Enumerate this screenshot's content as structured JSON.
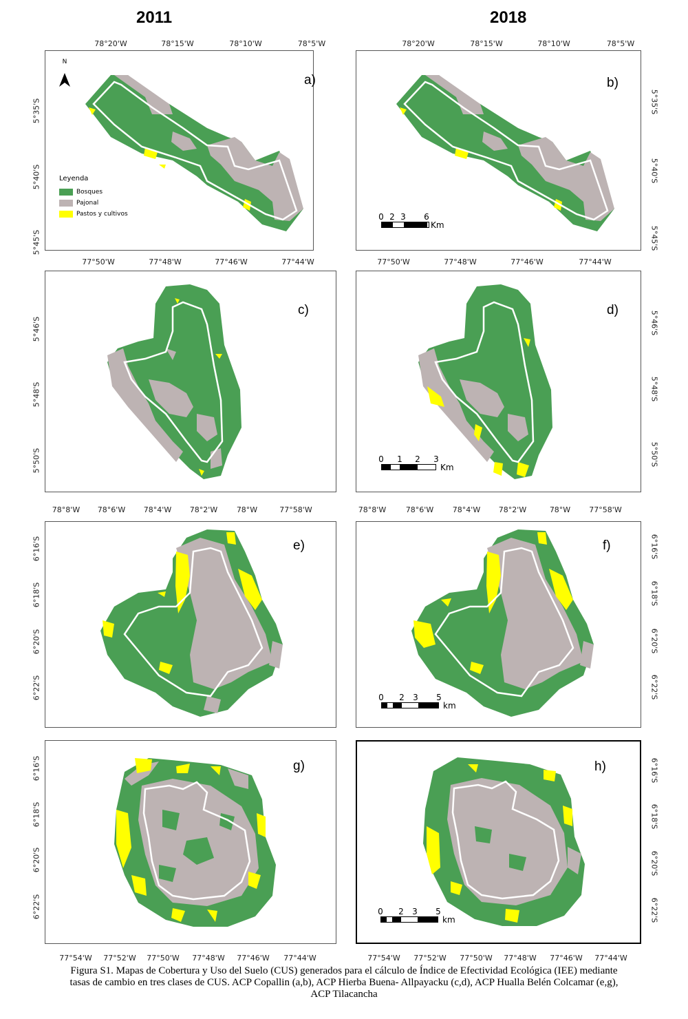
{
  "headers": {
    "left_year": "2011",
    "right_year": "2018"
  },
  "legend": {
    "title": "Leyenda",
    "items": [
      {
        "label": "Bosques",
        "color": "#4a9f54"
      },
      {
        "label": "Pajonal",
        "color": "#bdb3b3"
      },
      {
        "label": "Pastos y cultivos",
        "color": "#ffff00"
      }
    ]
  },
  "north_label": "N",
  "rows": [
    {
      "lon_ticks": [
        "78°20'W",
        "78°15'W",
        "78°10'W",
        "78°5'W"
      ],
      "lat_ticks": [
        "5°35'S",
        "5°40'S",
        "5°45'S"
      ],
      "left_label": "a)",
      "right_label": "b)",
      "scale": {
        "numbers": [
          "0",
          "2",
          "3",
          "6"
        ],
        "unit": "Km"
      }
    },
    {
      "lon_ticks": [
        "77°50'W",
        "77°48'W",
        "77°46'W",
        "77°44'W"
      ],
      "lat_ticks": [
        "5°46'S",
        "5°48'S",
        "5°50'S"
      ],
      "left_label": "c)",
      "right_label": "d)",
      "scale": {
        "numbers": [
          "0",
          "1",
          "2",
          "3"
        ],
        "unit": "Km"
      }
    },
    {
      "lon_ticks": [
        "78°8'W",
        "78°6'W",
        "78°4'W",
        "78°2'W",
        "78°W",
        "77°58'W"
      ],
      "lat_ticks": [
        "6°16'S",
        "6°18'S",
        "6°20'S",
        "6°22'S"
      ],
      "left_label": "e)",
      "right_label": "f)",
      "scale": {
        "numbers": [
          "0",
          "2",
          "3",
          "5"
        ],
        "unit": "km"
      }
    },
    {
      "lon_ticks": [
        "77°54'W",
        "77°52'W",
        "77°50'W",
        "77°48'W",
        "77°46'W",
        "77°44'W"
      ],
      "lat_ticks": [
        "6°16'S",
        "6°18'S",
        "6°20'S",
        "6°22'S"
      ],
      "left_label": "g)",
      "right_label": "h)",
      "scale": {
        "numbers": [
          "0",
          "2",
          "3",
          "5"
        ],
        "unit": "km"
      }
    }
  ],
  "caption": {
    "line1": "Figura S1. Mapas de Cobertura y Uso del Suelo (CUS) generados para el cálculo de Índice de Efectividad Ecológica (IEE) mediante",
    "line2": "tasas de cambio en tres clases de CUS. ACP Copallin (a,b), ACP Hierba Buena- Allpayacku (c,d), ACP Hualla Belén Colcamar (e,g),",
    "line3": "ACP Tilacancha"
  }
}
